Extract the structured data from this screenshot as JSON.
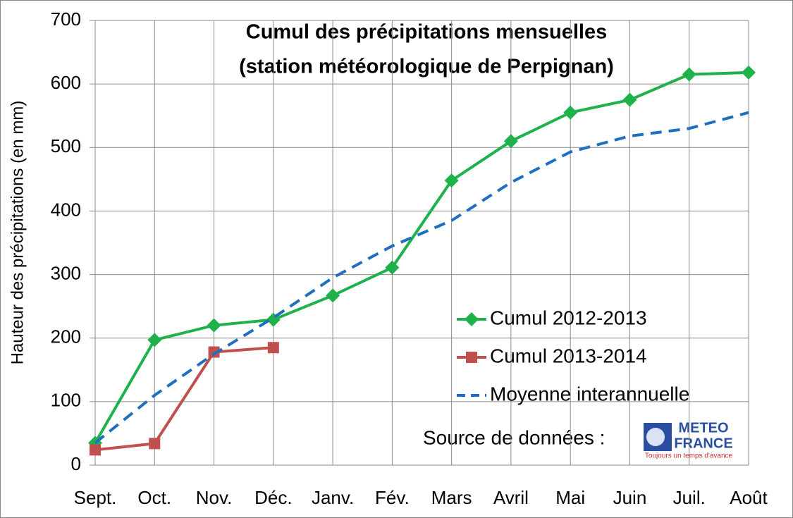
{
  "chart_data": {
    "type": "line",
    "title": [
      "Cumul des précipitations mensuelles",
      "(station météorologique de Perpignan)"
    ],
    "y_label": "Hauteur des précipitations (en mm)",
    "categories": [
      "Sept.",
      "Oct.",
      "Nov.",
      "Déc.",
      "Janv.",
      "Fév.",
      "Mars",
      "Avril",
      "Mai",
      "Juin",
      "Juil.",
      "Août"
    ],
    "series": [
      {
        "name": "Cumul 2012-2013",
        "color": "#1fb14a",
        "marker": "diamond",
        "dash": false,
        "values": [
          35,
          197,
          220,
          229,
          267,
          311,
          448,
          510,
          555,
          575,
          615,
          618
        ]
      },
      {
        "name": "Cumul 2013-2014",
        "color": "#c0504d",
        "marker": "square",
        "dash": false,
        "values": [
          24,
          34,
          178,
          185,
          null,
          null,
          null,
          null,
          null,
          null,
          null,
          null
        ]
      },
      {
        "name": "Moyenne interannuelle",
        "color": "#1f6fc0",
        "marker": "none",
        "dash": true,
        "values": [
          35,
          110,
          175,
          232,
          295,
          345,
          385,
          445,
          493,
          518,
          530,
          555
        ]
      }
    ],
    "ylim": [
      0,
      700
    ],
    "yticks": [
      0,
      100,
      200,
      300,
      400,
      500,
      600,
      700
    ],
    "grid": true,
    "source": {
      "text": "Source de données :",
      "logo_line1": "METEO",
      "logo_line2": "FRANCE",
      "logo_tagline": "Toujours un temps d'avance"
    }
  }
}
